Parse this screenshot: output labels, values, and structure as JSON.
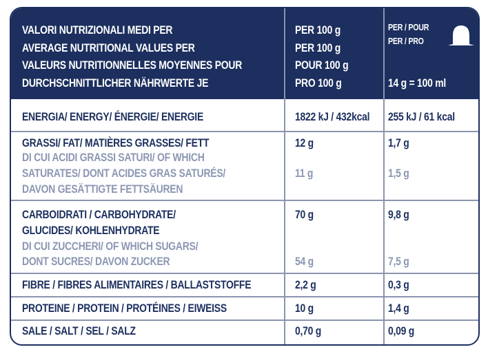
{
  "header": {
    "lines": [
      "VALORI NUTRIZIONALI MEDI PER",
      "AVERAGE NUTRITIONAL VALUES PER",
      "VALEURS NUTRITIONNELLES MOYENNES POUR",
      "DURCHSCHNITTLICHER NÄHRWERTE JE"
    ],
    "per100": [
      "PER 100 g",
      "PER 100 g",
      "POUR 100 g",
      "PRO 100 g"
    ],
    "capsule": {
      "line1": "PER / POUR",
      "line2": "PER / PRO",
      "serving": "14 g = 100 ml",
      "icon": "capsule-icon"
    }
  },
  "rows": {
    "energy": {
      "label": "ENERGIA/ ENERGY/ ÉNERGIE/ ENERGIE",
      "per100": "1822 kJ / 432kcal",
      "serving": "255 kJ / 61 kcal"
    },
    "fat": {
      "label": "GRASSI/ FAT/ MATIÈRES GRASSES/ FETT",
      "per100": "12 g",
      "serving": "1,7 g",
      "sub_lines": [
        "DI CUI ACIDI GRASSI SATURI/ OF WHICH",
        "SATURATES/ DONT ACIDES GRAS SATURÉS/",
        "DAVON GESÄTTIGTE FETTSÄUREN"
      ],
      "sub_per100": "11 g",
      "sub_serving": "1,5 g"
    },
    "carbs": {
      "label_lines": [
        "CARBOIDRATI / CARBOHYDRATE/",
        "GLUCIDES/ KOHLENHYDRATE"
      ],
      "per100": "70 g",
      "serving": "9,8 g",
      "sub_lines": [
        "DI CUI ZUCCHERI/ OF WHICH SUGARS/",
        "DONT SUCRES/ DAVON ZUCKER"
      ],
      "sub_per100": "54 g",
      "sub_serving": "7,5 g"
    },
    "fibre": {
      "label": "FIBRE / FIBRES ALIMENTAIRES / BALLASTSTOFFE",
      "per100": "2,2 g",
      "serving": "0,3 g"
    },
    "protein": {
      "label": "PROTEINE / PROTEIN / PROTÉINES / EIWEISS",
      "per100": "10 g",
      "serving": "1,4 g"
    },
    "salt": {
      "label": "SALE / SALT / SEL / SALZ",
      "per100": "0,70 g",
      "serving": "0,09 g"
    }
  },
  "colors": {
    "navy": "#1c2f5e",
    "sub_text": "#8c97b3",
    "divider": "#8a94ad"
  }
}
